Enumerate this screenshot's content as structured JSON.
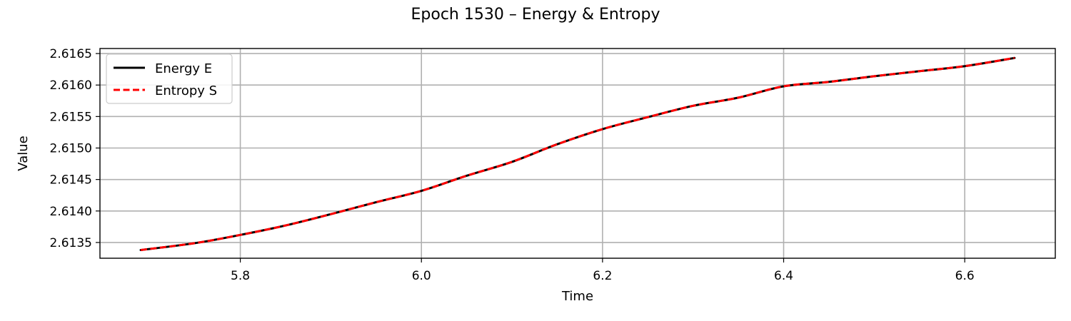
{
  "chart_data": {
    "type": "line",
    "title": "Epoch 1530 – Energy & Entropy",
    "xlabel": "Time",
    "ylabel": "Value",
    "xlim": [
      5.645,
      6.7
    ],
    "ylim": [
      2.61325,
      2.61658
    ],
    "x_ticks": [
      5.8,
      6.0,
      6.2,
      6.4,
      6.6
    ],
    "y_ticks": [
      2.6135,
      2.614,
      2.6145,
      2.615,
      2.6155,
      2.616,
      2.6165
    ],
    "grid": true,
    "legend_position": "top-left",
    "x": [
      5.69,
      5.75,
      5.8,
      5.85,
      5.9,
      5.95,
      6.0,
      6.05,
      6.1,
      6.15,
      6.2,
      6.25,
      6.3,
      6.35,
      6.4,
      6.45,
      6.5,
      6.55,
      6.6,
      6.655
    ],
    "series": [
      {
        "name": "Energy E",
        "color": "#000000",
        "style": "solid",
        "values": [
          2.61338,
          2.61349,
          2.61362,
          2.61377,
          2.61395,
          2.61414,
          2.61432,
          2.61456,
          2.61478,
          2.61506,
          2.6153,
          2.61549,
          2.61567,
          2.6158,
          2.61598,
          2.61605,
          2.61614,
          2.61622,
          2.6163,
          2.61643
        ]
      },
      {
        "name": "Entropy S",
        "color": "#ff0000",
        "style": "dashed",
        "values": [
          2.61338,
          2.61349,
          2.61362,
          2.61377,
          2.61395,
          2.61414,
          2.61432,
          2.61456,
          2.61478,
          2.61506,
          2.6153,
          2.61549,
          2.61567,
          2.6158,
          2.61598,
          2.61605,
          2.61614,
          2.61622,
          2.6163,
          2.61643
        ]
      }
    ]
  }
}
